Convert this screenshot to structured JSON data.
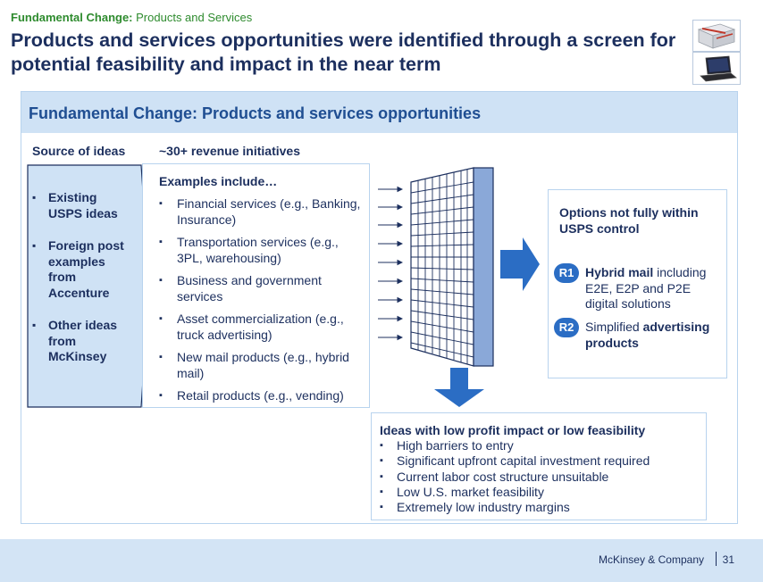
{
  "header": {
    "kicker_bold": "Fundamental Change:",
    "kicker_rest": "Products and Services",
    "title": "Products and services opportunities were identified through a screen for potential feasibility and impact in the near term"
  },
  "panel": {
    "title": "Fundamental Change: Products and services opportunities"
  },
  "sources": {
    "label": "Source of ideas",
    "items": [
      "Existing USPS ideas",
      "Foreign post examples from Accenture",
      "Other ideas from McKinsey"
    ]
  },
  "initiatives": {
    "label": "~30+ revenue initiatives",
    "examples_title": "Examples include…",
    "items": [
      "Financial services (e.g., Banking, Insurance)",
      "Transportation services (e.g., 3PL, warehousing)",
      "Business and government services",
      "Asset commercialization (e.g., truck advertising)",
      "New mail products (e.g., hybrid mail)",
      "Retail products (e.g., vending)"
    ]
  },
  "options": {
    "title": "Options not fully within USPS control",
    "items": [
      {
        "badge": "R1",
        "bold": "Hybrid mail",
        "rest": " including E2E, E2P and P2E digital solutions"
      },
      {
        "badge": "R2",
        "plain": "Simplified ",
        "bold": "advertising products"
      }
    ]
  },
  "low_impact": {
    "title": "Ideas with low profit impact or low feasibility",
    "items": [
      "High barriers to entry",
      "Significant upfront capital investment required",
      "Current labor cost structure unsuitable",
      "Low U.S. market feasibility",
      "Extremely low industry margins"
    ]
  },
  "footer": {
    "brand": "McKinsey & Company",
    "page": "31"
  },
  "colors": {
    "navy": "#1c2f5e",
    "accent_blue": "#2b6dc4",
    "green": "#2e8b2e",
    "light_blue": "#cfe2f5"
  },
  "icons": [
    "mail-package-thumbnail",
    "laptop-thumbnail",
    "screen-filter-icon",
    "arrow-right-icon",
    "arrow-down-icon"
  ]
}
